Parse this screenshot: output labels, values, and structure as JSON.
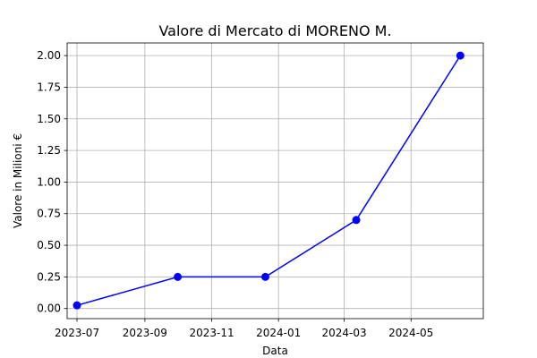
{
  "chart_data": {
    "type": "line",
    "title": "Valore di Mercato di MORENO M.",
    "xlabel": "Data",
    "ylabel": "Valore in Milioni €",
    "x": [
      "2023-07-01",
      "2023-10-01",
      "2023-12-20",
      "2024-03-12",
      "2024-06-15"
    ],
    "series": [
      {
        "values": [
          0.025,
          0.25,
          0.25,
          0.7,
          2.0
        ]
      }
    ],
    "ylim": [
      -0.08,
      2.1
    ],
    "xlim": [
      "2023-06-22",
      "2024-07-06"
    ],
    "yticks": [
      0.0,
      0.25,
      0.5,
      0.75,
      1.0,
      1.25,
      1.5,
      1.75,
      2.0
    ],
    "ytick_labels": [
      "0.00",
      "0.25",
      "0.50",
      "0.75",
      "1.00",
      "1.25",
      "1.50",
      "1.75",
      "2.00"
    ],
    "xticks": [
      "2023-07-01",
      "2023-09-01",
      "2023-11-01",
      "2024-01-01",
      "2024-03-01",
      "2024-05-01"
    ],
    "xtick_labels": [
      "2023-07",
      "2023-09",
      "2023-11",
      "2024-01",
      "2024-03",
      "2024-05"
    ],
    "grid": true,
    "line_color": "#0000ff",
    "marker": "circle"
  }
}
